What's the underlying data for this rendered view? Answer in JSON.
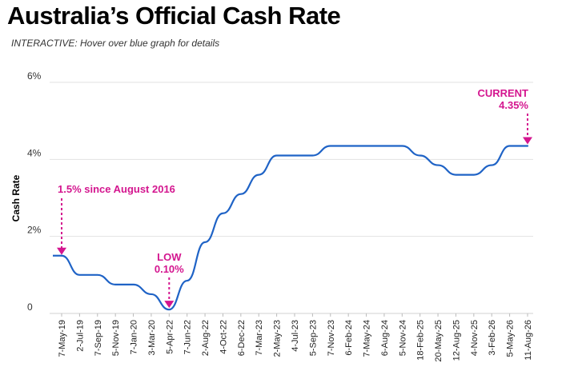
{
  "chart_data": {
    "type": "line",
    "title": "Australia’s Official Cash Rate",
    "subtitle": "INTERACTIVE: Hover over blue graph for details",
    "xlabel": "",
    "ylabel": "Cash Rate",
    "ylim": [
      0,
      6
    ],
    "y_ticks": [
      "0",
      "2%",
      "4%",
      "6%"
    ],
    "grid": true,
    "x_ticks": [
      "7-May-19",
      "2-Jul-19",
      "7-Sep-19",
      "5-Nov-19",
      "7-Jan-20",
      "3-Mar-20",
      "5-Apr-22",
      "7-Jun-22",
      "2-Aug-22",
      "4-Oct-22",
      "6-Dec-22",
      "7-Mar-23",
      "2-May-23",
      "4-Jul-23",
      "5-Sep-23",
      "7-Nov-23",
      "6-Feb-24",
      "7-May-24",
      "6-Aug-24",
      "5-Nov-24",
      "18-Feb-25",
      "20-May-25",
      "12-Aug-25",
      "4-Nov-25",
      "3-Feb-26",
      "5-May-26",
      "11-Aug-26"
    ],
    "series": [
      {
        "color": "#1f63c6",
        "x": [
          "7-May-19",
          "2-Jul-19",
          "7-Sep-19",
          "5-Nov-19",
          "7-Jan-20",
          "3-Mar-20",
          "5-Apr-22",
          "7-Jun-22",
          "2-Aug-22",
          "4-Oct-22",
          "6-Dec-22",
          "7-Mar-23",
          "2-May-23",
          "4-Jul-23",
          "5-Sep-23",
          "7-Nov-23",
          "6-Feb-24",
          "7-May-24",
          "6-Aug-24",
          "5-Nov-24",
          "18-Feb-25",
          "20-May-25",
          "12-Aug-25",
          "4-Nov-25",
          "3-Feb-26",
          "5-May-26",
          "11-Aug-26"
        ],
        "values": [
          1.5,
          1.0,
          1.0,
          0.75,
          0.75,
          0.5,
          0.1,
          0.85,
          1.85,
          2.6,
          3.1,
          3.6,
          4.1,
          4.1,
          4.1,
          4.35,
          4.35,
          4.35,
          4.35,
          4.35,
          4.1,
          3.85,
          3.6,
          3.6,
          3.85,
          4.35,
          4.35
        ]
      }
    ],
    "annotations": [
      {
        "text": "1.5% since August 2016",
        "x": "7-May-19",
        "y": 1.5
      },
      {
        "lines": [
          "LOW",
          "0.10%"
        ],
        "x": "5-Apr-22",
        "y": 0.1
      },
      {
        "lines": [
          "CURRENT",
          "4.35%"
        ],
        "x": "11-Aug-26",
        "y": 4.35
      }
    ],
    "annotation_color": "#d4168f"
  }
}
